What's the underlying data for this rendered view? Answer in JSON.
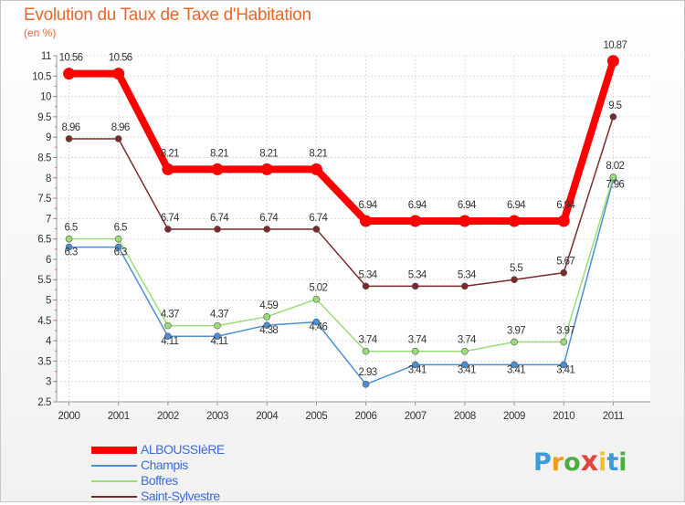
{
  "header": {
    "title": "Evolution du Taux de Taxe d'Habitation",
    "subtitle": "(en %)"
  },
  "logo": {
    "letters": [
      "P",
      "r",
      "o",
      "x",
      "i",
      "t",
      "i"
    ],
    "colors": [
      "#3a9bd9",
      "#f29a1f",
      "#4cae3f",
      "#e2453c",
      "#f2c41f",
      "#3a9bd9",
      "#4cae3f"
    ]
  },
  "chart_data": {
    "type": "line",
    "title": "Evolution du Taux de Taxe d'Habitation",
    "subtitle": "(en %)",
    "x": [
      "2000",
      "2001",
      "2002",
      "2003",
      "2004",
      "2005",
      "2006",
      "2007",
      "2008",
      "2009",
      "2010",
      "2011"
    ],
    "ylim": [
      2.5,
      11
    ],
    "yticks": [
      "2.5",
      "3",
      "3.5",
      "4",
      "4.5",
      "5",
      "5.5",
      "6",
      "6.5",
      "7",
      "7.5",
      "8",
      "8.5",
      "9",
      "9.5",
      "10",
      "10.5",
      "11"
    ],
    "grid": true,
    "legend": "bottom-left",
    "series": [
      {
        "name": "ALBOUSSIèRE",
        "color": "#ff0000",
        "values": [
          10.56,
          10.56,
          8.21,
          8.21,
          8.21,
          8.21,
          6.94,
          6.94,
          6.94,
          6.94,
          6.94,
          10.87
        ],
        "labels": [
          "10.56",
          "10.56",
          "8.21",
          "8.21",
          "8.21",
          "8.21",
          "6.94",
          "6.94",
          "6.94",
          "6.94",
          "6.94",
          "10.87"
        ]
      },
      {
        "name": "Champis",
        "color": "#4a8fd4",
        "values": [
          6.3,
          6.3,
          4.11,
          4.11,
          4.38,
          4.46,
          2.93,
          3.41,
          3.41,
          3.41,
          3.41,
          7.96
        ],
        "labels": [
          "6.3",
          "6.3",
          "4.11",
          "4.11",
          "4.38",
          "4.46",
          "2.93",
          "3.41",
          "3.41",
          "3.41",
          "3.41",
          "7.96"
        ]
      },
      {
        "name": "Boffres",
        "color": "#99dd77",
        "values": [
          6.5,
          6.5,
          4.37,
          4.37,
          4.59,
          5.02,
          3.74,
          3.74,
          3.74,
          3.97,
          3.97,
          8.02
        ],
        "labels": [
          "6.5",
          "6.5",
          "4.37",
          "4.37",
          "4.59",
          "5.02",
          "3.74",
          "3.74",
          "3.74",
          "3.97",
          "3.97",
          "8.02"
        ]
      },
      {
        "name": "Saint-Sylvestre",
        "color": "#7a2a2a",
        "values": [
          8.96,
          8.96,
          6.74,
          6.74,
          6.74,
          6.74,
          5.34,
          5.34,
          5.34,
          5.5,
          5.67,
          9.5
        ],
        "labels": [
          "8.96",
          "8.96",
          "6.74",
          "6.74",
          "6.74",
          "6.74",
          "5.34",
          "5.34",
          "5.34",
          "5.5",
          "5.67",
          "9.5"
        ]
      }
    ]
  }
}
